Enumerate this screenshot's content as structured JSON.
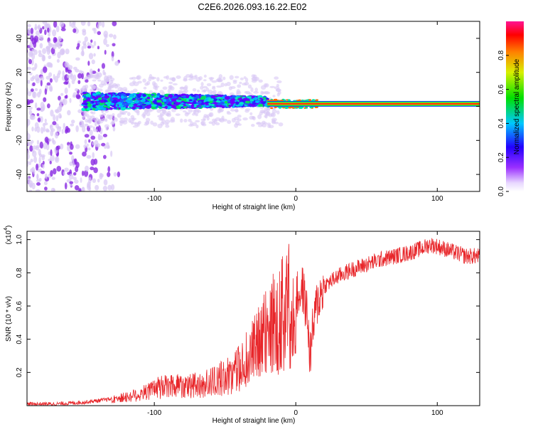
{
  "title": "C2E6.2026.093.16.22.E02",
  "colors": {
    "snr_line": "#e8262a",
    "waterfall_faint": "#d9c8f5",
    "waterfall_mid": "#8a2be2",
    "band_core": "#ff2200",
    "band_edge": "#00dd44"
  },
  "chart_data": [
    {
      "type": "heatmap",
      "title": "",
      "xlabel": "Height of straight line (km)",
      "ylabel": "Frequency (Hz)",
      "xlim": [
        -190,
        130
      ],
      "ylim": [
        -50,
        50
      ],
      "xticks": [
        -100,
        0,
        100
      ],
      "xtick_labels": [
        "-100",
        "0",
        "100"
      ],
      "yticks": [
        -40,
        -20,
        0,
        20,
        40
      ],
      "ytick_labels": [
        "-40",
        "-20",
        "0",
        "20",
        "40"
      ],
      "features": [
        {
          "name": "scattered noise",
          "x_range": [
            -190,
            -130
          ],
          "freq_range": [
            -50,
            50
          ]
        },
        {
          "name": "broadened signal band",
          "x_range": [
            -150,
            -20
          ],
          "freq_center": 3,
          "freq_halfwidth": 5
        },
        {
          "name": "narrow carrier line",
          "x_range": [
            -20,
            130
          ],
          "freq_center": 1.5,
          "freq_halfwidth": 1
        }
      ],
      "colorbar": {
        "label": "Normalized spectral amplitude",
        "range": [
          0,
          1
        ],
        "ticks": [
          0.0,
          0.2,
          0.4,
          0.6,
          0.8
        ],
        "tick_labels": [
          "0.0",
          "0.2",
          "0.4",
          "0.6",
          "0.8"
        ]
      }
    },
    {
      "type": "line",
      "title": "",
      "xlabel": "Height of straight line (km)",
      "ylabel": "SNR (10 * v/v)",
      "scale_label": "(x10",
      "scale_exponent": "4",
      "scale_close": ")",
      "xlim": [
        -190,
        130
      ],
      "ylim": [
        0,
        1.05
      ],
      "xticks": [
        -100,
        0,
        100
      ],
      "xtick_labels": [
        "-100",
        "0",
        "100"
      ],
      "yticks": [
        0.2,
        0.4,
        0.6,
        0.8,
        1.0
      ],
      "ytick_labels": [
        "0.2",
        "0.4",
        "0.6",
        "0.8",
        "1.0"
      ],
      "series": [
        {
          "name": "SNR",
          "x": [
            -190,
            -170,
            -150,
            -140,
            -130,
            -120,
            -110,
            -100,
            -90,
            -80,
            -70,
            -60,
            -50,
            -40,
            -35,
            -30,
            -25,
            -20,
            -15,
            -10,
            -5,
            0,
            5,
            8,
            10,
            12,
            15,
            20,
            30,
            40,
            50,
            60,
            70,
            80,
            90,
            95,
            100,
            110,
            120,
            130
          ],
          "y": [
            0.01,
            0.01,
            0.02,
            0.03,
            0.04,
            0.05,
            0.07,
            0.1,
            0.12,
            0.13,
            0.12,
            0.14,
            0.17,
            0.22,
            0.27,
            0.32,
            0.38,
            0.45,
            0.5,
            0.55,
            0.6,
            0.65,
            0.7,
            0.55,
            0.3,
            0.45,
            0.62,
            0.72,
            0.78,
            0.82,
            0.85,
            0.88,
            0.9,
            0.92,
            0.95,
            0.97,
            0.96,
            0.93,
            0.9,
            0.9
          ]
        }
      ]
    }
  ]
}
